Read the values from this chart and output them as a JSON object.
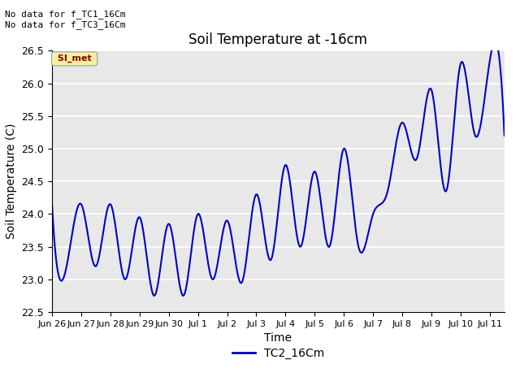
{
  "title": "Soil Temperature at -16cm",
  "xlabel": "Time",
  "ylabel": "Soil Temperature (C)",
  "ylim": [
    22.5,
    26.5
  ],
  "background_color": "#e8e8e8",
  "line_color": "#0000cc",
  "line_width": 1.5,
  "annotation_text1": "No data for f_TC1_16Cm",
  "annotation_text2": "No data for f_TC3_16Cm",
  "legend_label": "TC2_16Cm",
  "legend_box_label": "SI_met",
  "x_tick_labels": [
    "Jun 26",
    "Jun 27",
    "Jun 28",
    "Jun 29",
    "Jun 30",
    "Jul 1",
    "Jul 2",
    "Jul 3",
    "Jul 4",
    "Jul 5",
    "Jul 6",
    "Jul 7",
    "Jul 8",
    "Jul 9",
    "Jul 10",
    "Jul 11"
  ],
  "y_ticks": [
    22.5,
    23.0,
    23.5,
    24.0,
    24.5,
    25.0,
    25.5,
    26.0,
    26.5
  ],
  "peaks": [
    24.15,
    24.15,
    24.15,
    23.95,
    23.85,
    24.0,
    23.9,
    24.1,
    24.3,
    24.75,
    24.65,
    25.0,
    24.0,
    25.4,
    25.9,
    26.3,
    26.35
  ],
  "troughs": [
    23.2,
    23.2,
    23.0,
    22.75,
    22.75,
    23.0,
    22.95,
    23.3,
    23.5,
    23.5,
    23.5,
    24.0,
    24.35,
    24.85,
    25.2
  ],
  "figsize": [
    6.4,
    4.8
  ],
  "dpi": 100
}
